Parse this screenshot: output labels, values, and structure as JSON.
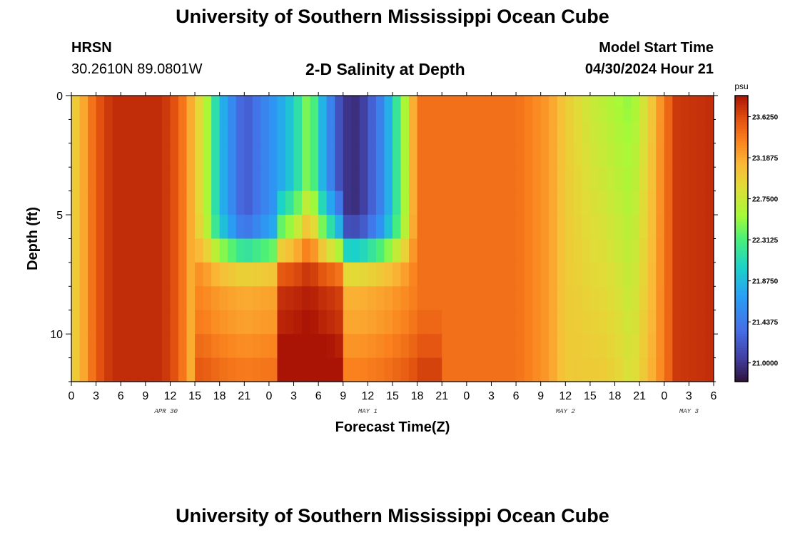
{
  "header": {
    "title": "University of Southern Mississippi Ocean Cube",
    "station": "HRSN",
    "coords": "30.2610N  89.0801W",
    "subtitle": "2-D Salinity at Depth",
    "start_label": "Model Start Time",
    "start_value": "04/30/2024 Hour 21"
  },
  "footer": {
    "title": "University of Southern Mississippi Ocean Cube"
  },
  "chart_data": {
    "type": "heatmap",
    "variable": "salinity",
    "xlabel": "Forecast Time(Z)",
    "ylabel": "Depth (ft)",
    "x_range_hours_from_apr30_00z": [
      0,
      78
    ],
    "y_range_ft": [
      0,
      12
    ],
    "y_reversed": true,
    "x_ticks": [
      "0",
      "3",
      "6",
      "9",
      "12",
      "15",
      "18",
      "21",
      "0",
      "3",
      "6",
      "9",
      "12",
      "15",
      "18",
      "21",
      "0",
      "3",
      "6",
      "9",
      "12",
      "15",
      "18",
      "21",
      "0",
      "3",
      "6"
    ],
    "y_ticks": [
      "0",
      "5",
      "10"
    ],
    "date_labels": [
      {
        "label": "APR 30",
        "hour": 11.5
      },
      {
        "label": "MAY 1",
        "hour": 36
      },
      {
        "label": "MAY 2",
        "hour": 60
      },
      {
        "label": "MAY 3",
        "hour": 75
      }
    ],
    "colorbar": {
      "unit": "psu",
      "min": 20.8,
      "max": 23.85,
      "ticks": [
        "23.6250",
        "23.1875",
        "22.7500",
        "22.3125",
        "21.8750",
        "21.4375",
        "21.0000"
      ],
      "tick_values": [
        23.625,
        23.1875,
        22.75,
        22.3125,
        21.875,
        21.4375,
        21.0
      ]
    },
    "depth_levels_ft": [
      0.25,
      0.75,
      1.5,
      2.5,
      3.5,
      4.5,
      5.5,
      6.5,
      7.5,
      8.5,
      9.5,
      10.5,
      11.5
    ],
    "surface_profile": [
      {
        "hour": 0,
        "value": 22.9
      },
      {
        "hour": 1.5,
        "value": 23.2
      },
      {
        "hour": 3,
        "value": 23.55
      },
      {
        "hour": 5,
        "value": 23.75
      },
      {
        "hour": 11,
        "value": 23.75
      },
      {
        "hour": 13,
        "value": 23.55
      },
      {
        "hour": 15,
        "value": 23.05
      },
      {
        "hour": 16.5,
        "value": 22.6
      },
      {
        "hour": 18,
        "value": 21.9
      },
      {
        "hour": 21,
        "value": 21.2
      },
      {
        "hour": 25,
        "value": 21.7
      },
      {
        "hour": 27,
        "value": 22.0
      },
      {
        "hour": 29,
        "value": 22.6
      },
      {
        "hour": 30,
        "value": 22.0
      },
      {
        "hour": 33,
        "value": 21.0
      },
      {
        "hour": 35,
        "value": 20.95
      },
      {
        "hour": 38,
        "value": 21.6
      },
      {
        "hour": 40.5,
        "value": 22.6
      },
      {
        "hour": 42,
        "value": 23.45
      },
      {
        "hour": 54,
        "value": 23.45
      },
      {
        "hour": 58,
        "value": 23.25
      },
      {
        "hour": 60,
        "value": 23.0
      },
      {
        "hour": 63,
        "value": 22.75
      },
      {
        "hour": 68,
        "value": 22.5
      },
      {
        "hour": 70,
        "value": 22.9
      },
      {
        "hour": 72,
        "value": 23.4
      },
      {
        "hour": 73.5,
        "value": 23.7
      },
      {
        "hour": 78,
        "value": 23.75
      }
    ]
  }
}
